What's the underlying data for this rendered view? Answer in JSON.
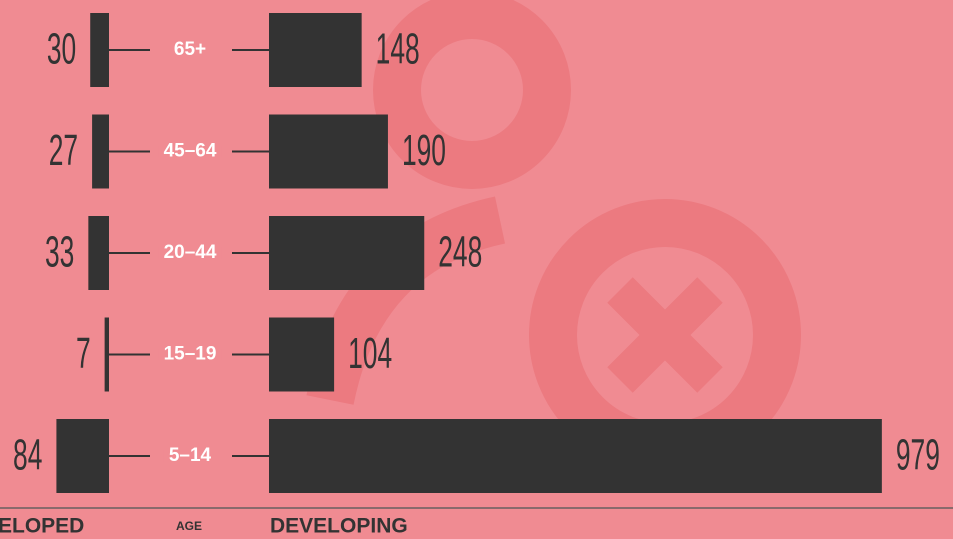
{
  "chart_data": {
    "type": "butterfly-bar",
    "categories": [
      "65+",
      "45–64",
      "20–44",
      "15–19",
      "5–14"
    ],
    "series": [
      {
        "name": "ELOPED",
        "color": "#333333",
        "values": [
          30,
          27,
          33,
          7,
          84
        ]
      },
      {
        "name": "DEVELOPING",
        "color": "#333333",
        "values": [
          148,
          190,
          248,
          104,
          979
        ]
      }
    ],
    "category_axis_label": "AGE"
  }
}
